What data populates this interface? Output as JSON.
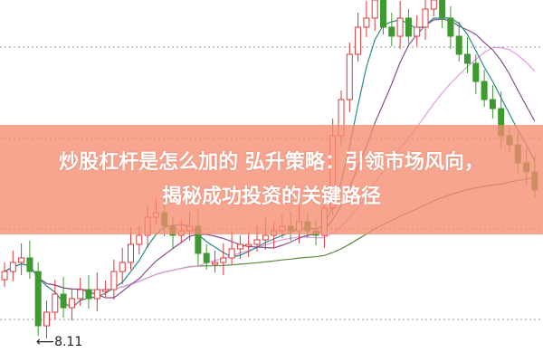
{
  "headline": {
    "line1": "炒股杠杆是怎么加的 弘升策略：引领市场风向，",
    "line2": "揭秘成功投资的关键路径"
  },
  "chart_data": {
    "type": "candlestick",
    "low_marker": "8.11",
    "grid": "dotted horizontal",
    "colors": {
      "up": "#e0383a",
      "down": "#3d9a2e",
      "ma5": "#2a8a8a",
      "ma10": "#8a5090",
      "ma20": "#e89ae0",
      "ma60": "#5a8a3a",
      "banner": "#f68c70"
    },
    "open": [
      8.8,
      8.89,
      8.99,
      9.04,
      8.89,
      8.29,
      8.44,
      8.64,
      8.49,
      8.59,
      8.69,
      8.59,
      8.69,
      8.69,
      8.89,
      8.99,
      9.19,
      9.29,
      9.49,
      9.54,
      9.39,
      9.29,
      9.34,
      9.39,
      9.09,
      8.99,
      8.99,
      9.04,
      9.14,
      9.19,
      9.19,
      9.24,
      9.29,
      9.34,
      9.39,
      9.34,
      9.44,
      9.34,
      9.29,
      9.59,
      10.39,
      10.79,
      11.29,
      11.59,
      11.69,
      11.89,
      11.59,
      11.49,
      11.69,
      11.49,
      11.59,
      11.79,
      11.89,
      11.69,
      11.49,
      11.29,
      11.19,
      10.99,
      10.79,
      10.69,
      10.39,
      10.29,
      10.09,
      9.99
    ],
    "close": [
      8.89,
      8.99,
      9.04,
      8.89,
      8.29,
      8.44,
      8.64,
      8.49,
      8.59,
      8.69,
      8.59,
      8.69,
      8.69,
      8.89,
      8.99,
      9.19,
      9.29,
      9.49,
      9.54,
      9.39,
      9.29,
      9.34,
      9.39,
      9.09,
      8.99,
      8.99,
      9.04,
      9.14,
      9.19,
      9.19,
      9.24,
      9.29,
      9.34,
      9.39,
      9.34,
      9.44,
      9.34,
      9.29,
      9.59,
      10.39,
      10.79,
      11.29,
      11.59,
      11.69,
      11.89,
      11.59,
      11.49,
      11.69,
      11.49,
      11.59,
      11.79,
      11.89,
      11.69,
      11.49,
      11.29,
      11.19,
      10.99,
      10.79,
      10.69,
      10.39,
      10.29,
      10.09,
      9.99,
      9.79
    ]
  }
}
